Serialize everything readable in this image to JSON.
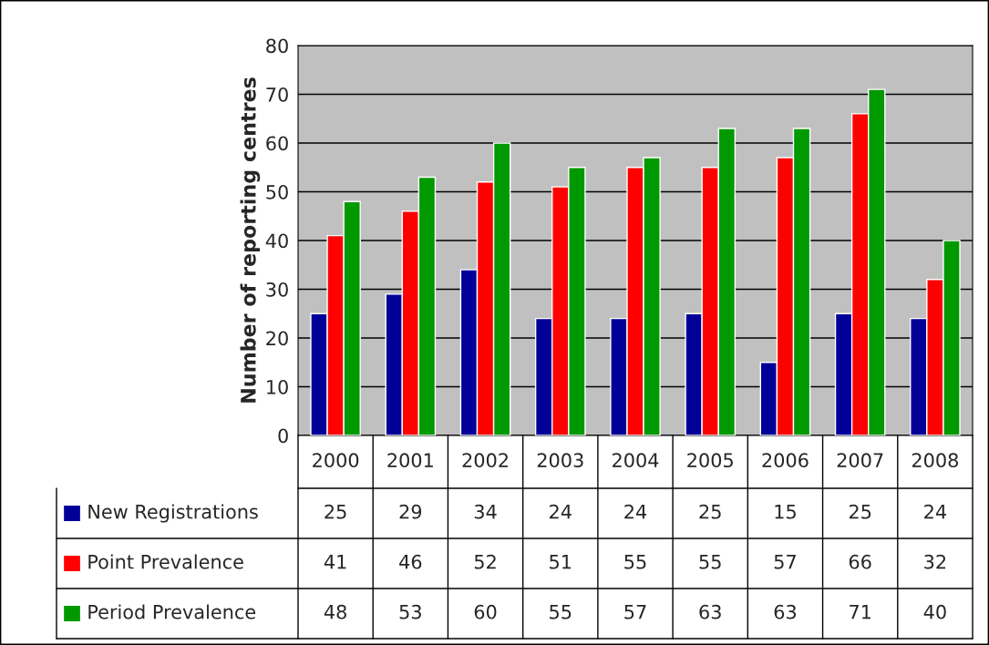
{
  "chart_data": {
    "type": "bar",
    "ylabel": "Number of reporting centres",
    "categories": [
      "2000",
      "2001",
      "2002",
      "2003",
      "2004",
      "2005",
      "2006",
      "2007",
      "2008"
    ],
    "series": [
      {
        "name": "New Registrations",
        "color": "#000099",
        "values": [
          25,
          29,
          34,
          24,
          24,
          25,
          15,
          25,
          24
        ]
      },
      {
        "name": "Point Prevalence",
        "color": "#ff0000",
        "values": [
          41,
          46,
          52,
          51,
          55,
          55,
          57,
          66,
          32
        ]
      },
      {
        "name": "Period Prevalence",
        "color": "#009900",
        "values": [
          48,
          53,
          60,
          55,
          57,
          63,
          63,
          71,
          40
        ]
      }
    ],
    "ylim": [
      0,
      80
    ],
    "yticks": [
      0,
      10,
      20,
      30,
      40,
      50,
      60,
      70,
      80
    ],
    "grid": "y",
    "legend": "bottom",
    "data_labels": true
  }
}
